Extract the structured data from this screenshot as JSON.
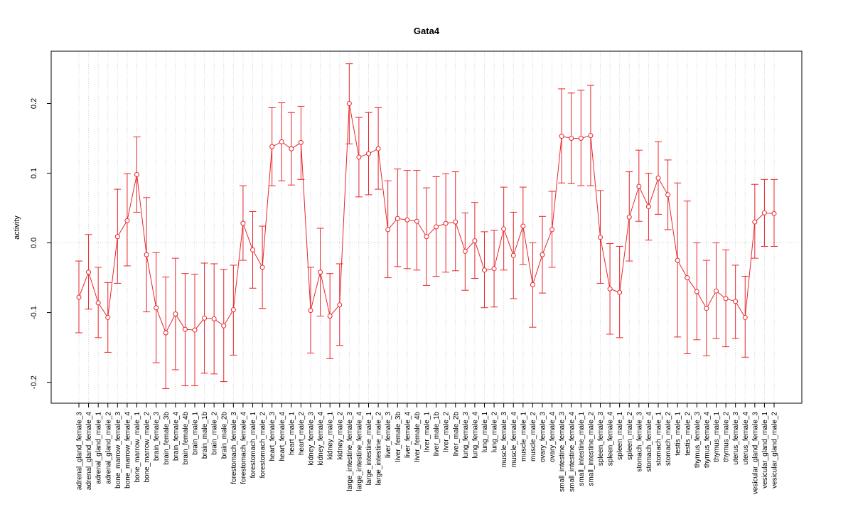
{
  "chart_data": {
    "type": "line",
    "title": "Gata4",
    "xlabel": "",
    "ylabel": "activity",
    "ylim": [
      -0.23,
      0.275
    ],
    "yticks": [
      -0.2,
      -0.1,
      0.0,
      0.1,
      0.2
    ],
    "ytick_labels": [
      "-0.2",
      "-0.1",
      "0.0",
      "0.1",
      "0.2"
    ],
    "grid": "dotted",
    "color": "#e8262b",
    "categories": [
      "adrenal_gland_female_3",
      "adrenal_gland_female_4",
      "adrenal_gland_male_1",
      "adrenal_gland_male_2",
      "bone_marrow_female_3",
      "bone_marrow_female_4",
      "bone_marrow_male_1",
      "bone_marrow_male_2",
      "brain_female_3",
      "brain_female_3b",
      "brain_female_4",
      "brain_female_4b",
      "brain_male_1",
      "brain_male_1b",
      "brain_male_2",
      "brain_male_2b",
      "forestomach_female_3",
      "forestomach_female_4",
      "forestomach_male_1",
      "forestomach_male_2",
      "heart_female_3",
      "heart_female_4",
      "heart_male_1",
      "heart_male_2",
      "kidney_female_3",
      "kidney_female_4",
      "kidney_male_1",
      "kidney_male_2",
      "large_intestine_female_3",
      "large_intestine_female_4",
      "large_intestine_male_1",
      "large_intestine_male_2",
      "liver_female_3",
      "liver_female_3b",
      "liver_female_4",
      "liver_female_4b",
      "liver_male_1",
      "liver_male_1b",
      "liver_male_2",
      "liver_male_2b",
      "lung_female_3",
      "lung_female_4",
      "lung_male_1",
      "lung_male_2",
      "muscle_female_3",
      "muscle_female_4",
      "muscle_male_1",
      "muscle_male_2",
      "ovary_female_3",
      "ovary_female_4",
      "small_intestine_female_3",
      "small_intestine_female_4",
      "small_intestine_male_1",
      "small_intestine_male_2",
      "spleen_female_3",
      "spleen_female_4",
      "spleen_male_1",
      "spleen_male_2",
      "stomach_female_3",
      "stomach_female_4",
      "stomach_male_1",
      "stomach_male_2",
      "testis_male_1",
      "testis_male_2",
      "thymus_female_3",
      "thymus_female_4",
      "thymus_male_1",
      "thymus_male_2",
      "uterus_female_3",
      "uterus_female_4",
      "vesicular_gland_female_3",
      "vesicular_gland_male_1",
      "vesicular_gland_male_2"
    ],
    "values": [
      -0.078,
      -0.042,
      -0.086,
      -0.107,
      0.009,
      0.032,
      0.098,
      -0.017,
      -0.093,
      -0.129,
      -0.102,
      -0.124,
      -0.125,
      -0.108,
      -0.109,
      -0.119,
      -0.096,
      0.028,
      -0.01,
      -0.035,
      0.138,
      0.145,
      0.135,
      0.144,
      -0.097,
      -0.042,
      -0.105,
      -0.089,
      0.2,
      0.123,
      0.128,
      0.135,
      0.019,
      0.035,
      0.033,
      0.031,
      0.009,
      0.023,
      0.028,
      0.03,
      -0.012,
      0.003,
      -0.039,
      -0.037,
      0.02,
      -0.018,
      0.024,
      -0.06,
      -0.017,
      0.019,
      0.153,
      0.15,
      0.15,
      0.154,
      0.008,
      -0.066,
      -0.071,
      0.037,
      0.081,
      0.052,
      0.093,
      0.069,
      -0.025,
      -0.05,
      -0.07,
      -0.094,
      -0.069,
      -0.08,
      -0.084,
      -0.107,
      0.03,
      0.043,
      0.042
    ],
    "lower": [
      -0.129,
      -0.095,
      -0.136,
      -0.157,
      -0.058,
      -0.033,
      0.044,
      -0.099,
      -0.172,
      -0.209,
      -0.182,
      -0.205,
      -0.205,
      -0.187,
      -0.188,
      -0.199,
      -0.161,
      -0.025,
      -0.065,
      -0.094,
      0.082,
      0.089,
      0.083,
      0.091,
      -0.158,
      -0.105,
      -0.166,
      -0.147,
      0.142,
      0.066,
      0.069,
      0.077,
      -0.05,
      -0.034,
      -0.037,
      -0.039,
      -0.061,
      -0.048,
      -0.042,
      -0.04,
      -0.068,
      -0.051,
      -0.093,
      -0.092,
      -0.039,
      -0.08,
      -0.031,
      -0.121,
      -0.072,
      -0.035,
      0.086,
      0.085,
      0.082,
      0.082,
      -0.058,
      -0.131,
      -0.136,
      -0.026,
      0.031,
      0.004,
      0.041,
      0.019,
      -0.135,
      -0.159,
      -0.139,
      -0.162,
      -0.137,
      -0.149,
      -0.137,
      -0.164,
      -0.022,
      -0.005,
      -0.005
    ],
    "upper": [
      -0.026,
      0.012,
      -0.035,
      -0.057,
      0.077,
      0.099,
      0.152,
      0.065,
      -0.014,
      -0.049,
      -0.022,
      -0.044,
      -0.045,
      -0.029,
      -0.03,
      -0.038,
      -0.032,
      0.082,
      0.045,
      0.024,
      0.194,
      0.201,
      0.187,
      0.196,
      -0.035,
      0.021,
      -0.044,
      -0.03,
      0.257,
      0.18,
      0.187,
      0.194,
      0.089,
      0.106,
      0.104,
      0.104,
      0.079,
      0.095,
      0.099,
      0.102,
      0.043,
      0.058,
      0.016,
      0.018,
      0.08,
      0.044,
      0.08,
      0.0,
      0.038,
      0.074,
      0.221,
      0.215,
      0.219,
      0.226,
      0.075,
      -0.001,
      -0.005,
      0.102,
      0.133,
      0.1,
      0.145,
      0.119,
      0.086,
      0.06,
      0.0,
      -0.025,
      0.0,
      -0.01,
      -0.032,
      -0.048,
      0.084,
      0.091,
      0.091
    ]
  }
}
